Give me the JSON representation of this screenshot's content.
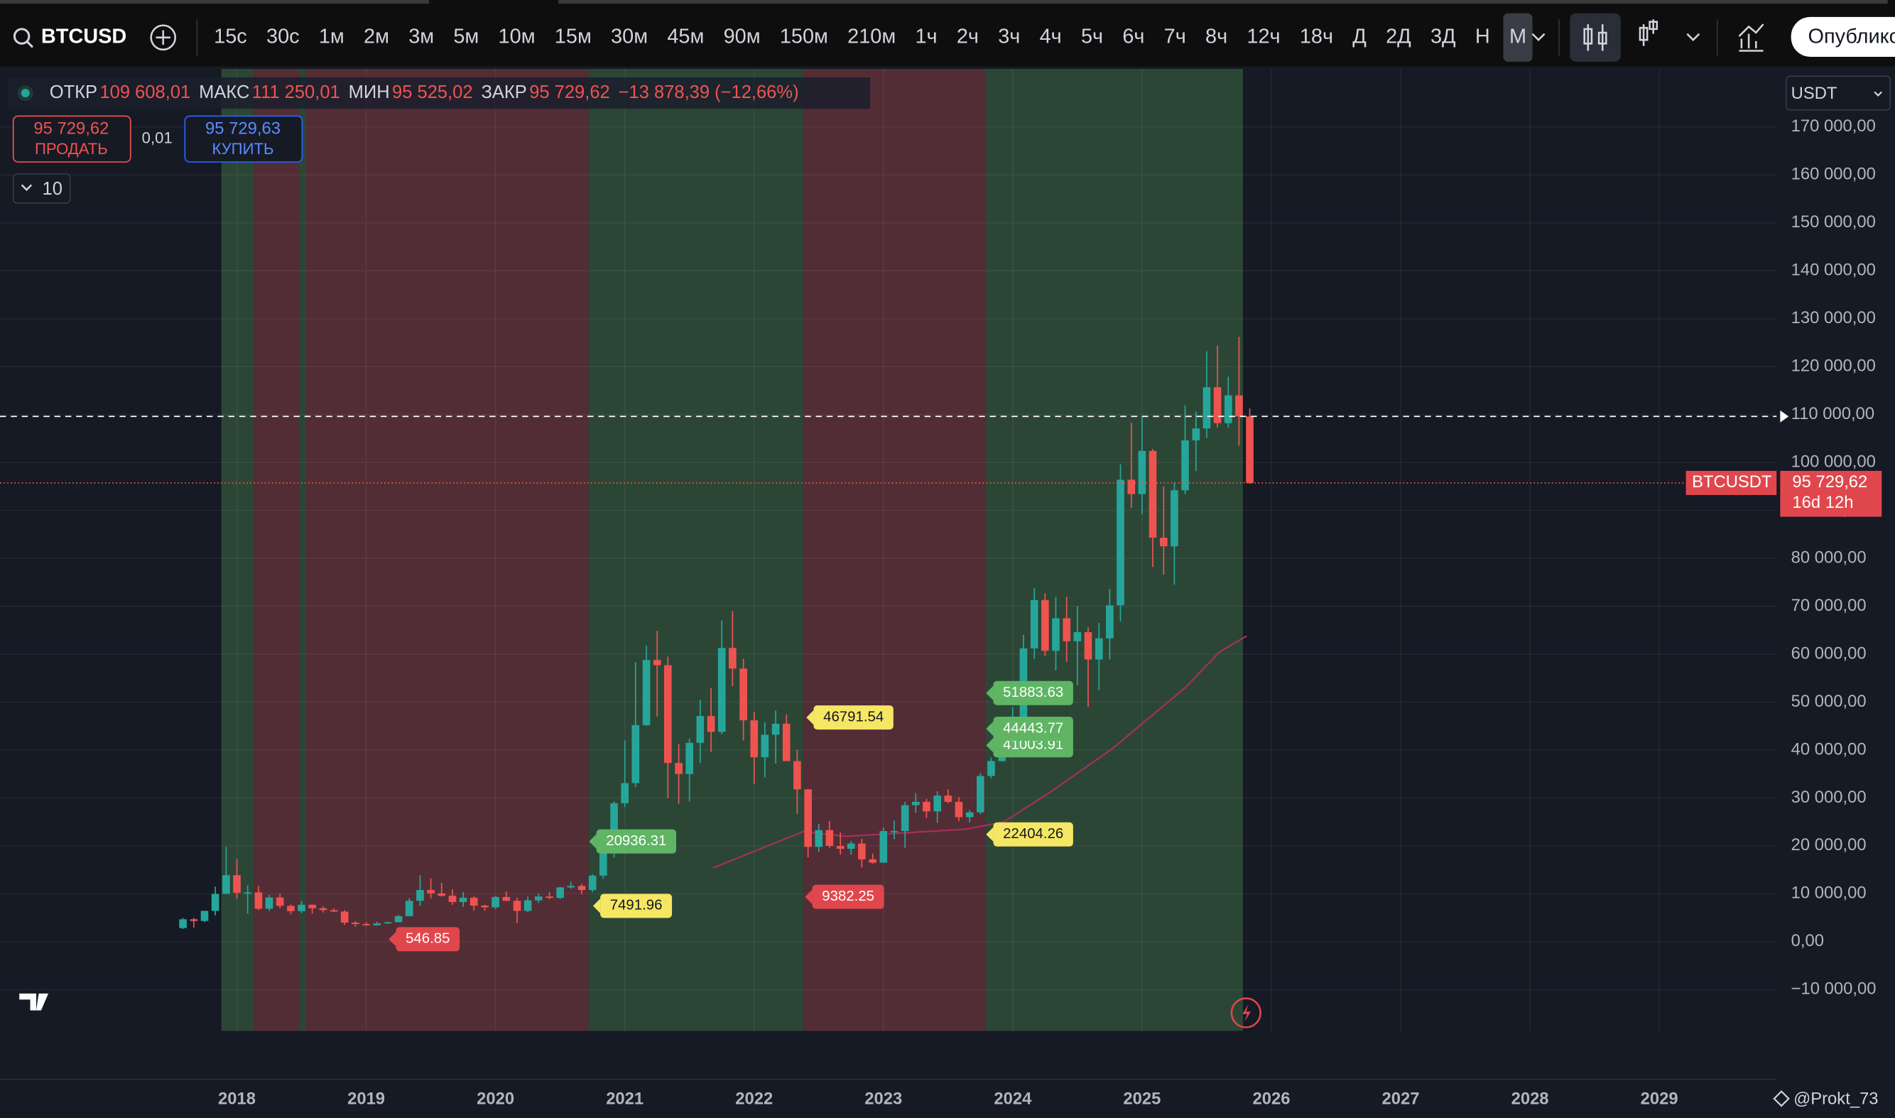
{
  "toolbar": {
    "symbol": "BTCUSD",
    "intervals": [
      "15с",
      "30с",
      "1м",
      "2м",
      "3м",
      "5м",
      "10м",
      "15м",
      "30м",
      "45м",
      "90м",
      "150м",
      "210м",
      "1ч",
      "2ч",
      "3ч",
      "4ч",
      "5ч",
      "6ч",
      "7ч",
      "8ч",
      "12ч",
      "18ч",
      "Д",
      "2Д",
      "3Д",
      "Н",
      "М"
    ],
    "publish": "Опублико"
  },
  "legend": {
    "items": [
      {
        "label": "ОТКР",
        "value": "109 608,01"
      },
      {
        "label": "МАКС",
        "value": "111 250,01"
      },
      {
        "label": "МИН",
        "value": "95 525,02"
      },
      {
        "label": "ЗАКР",
        "value": "95 729,62"
      }
    ],
    "change": "−13 878,39 (−12,66%)"
  },
  "trade": {
    "sell_price": "95 729,62",
    "sell_label": "ПРОДАТЬ",
    "quantity": "0,01",
    "buy_price": "95 729,63",
    "buy_label": "КУПИТЬ"
  },
  "indicator_count": "10",
  "currency": "USDT",
  "watermark": "@Prokt_73",
  "chart_data": {
    "type": "candlestick",
    "up_color": "#26a69a",
    "down_color": "#ef5350",
    "xlim": [
      2016.168,
      2029.907
    ],
    "xticks": [
      2018,
      2019,
      2020,
      2021,
      2022,
      2023,
      2024,
      2025,
      2026,
      2027,
      2028,
      2029
    ],
    "ylim": [
      -18600,
      182100
    ],
    "yticks": [
      {
        "value": -10000,
        "label": "−10 000,00"
      },
      {
        "value": 0,
        "label": "0,00"
      },
      {
        "value": 10000,
        "label": "10 000,00"
      },
      {
        "value": 20000,
        "label": "20 000,00"
      },
      {
        "value": 30000,
        "label": "30 000,00"
      },
      {
        "value": 40000,
        "label": "40 000,00"
      },
      {
        "value": 50000,
        "label": "50 000,00"
      },
      {
        "value": 60000,
        "label": "60 000,00"
      },
      {
        "value": 70000,
        "label": "70 000,00"
      },
      {
        "value": 80000,
        "label": "80 000,00"
      },
      {
        "value": 90000,
        "label": "90 000,00"
      },
      {
        "value": 100000,
        "label": "100 000,00"
      },
      {
        "value": 110000,
        "label": "110 000,00"
      },
      {
        "value": 120000,
        "label": "120 000,00"
      },
      {
        "value": 130000,
        "label": "130 000,00"
      },
      {
        "value": 140000,
        "label": "140 000,00"
      },
      {
        "value": 150000,
        "label": "150 000,00"
      },
      {
        "value": 160000,
        "label": "160 000,00"
      },
      {
        "value": 170000,
        "label": "170 000,00"
      }
    ],
    "grid": true,
    "x": [
      2017.583,
      2017.667,
      2017.75,
      2017.833,
      2017.917,
      2018,
      2018.083,
      2018.167,
      2018.25,
      2018.333,
      2018.417,
      2018.5,
      2018.583,
      2018.667,
      2018.75,
      2018.833,
      2018.917,
      2019,
      2019.083,
      2019.167,
      2019.25,
      2019.333,
      2019.417,
      2019.5,
      2019.583,
      2019.667,
      2019.75,
      2019.833,
      2019.917,
      2020,
      2020.083,
      2020.167,
      2020.25,
      2020.333,
      2020.417,
      2020.5,
      2020.583,
      2020.667,
      2020.75,
      2020.833,
      2020.917,
      2021,
      2021.083,
      2021.167,
      2021.25,
      2021.333,
      2021.417,
      2021.5,
      2021.583,
      2021.667,
      2021.75,
      2021.833,
      2021.917,
      2022,
      2022.083,
      2022.167,
      2022.25,
      2022.333,
      2022.417,
      2022.5,
      2022.583,
      2022.667,
      2022.75,
      2022.833,
      2022.917,
      2023,
      2023.083,
      2023.167,
      2023.25,
      2023.333,
      2023.417,
      2023.5,
      2023.583,
      2023.667,
      2023.75,
      2023.833,
      2023.917,
      2024,
      2024.083,
      2024.167,
      2024.25,
      2024.333,
      2024.417,
      2024.5,
      2024.583,
      2024.667,
      2024.75,
      2024.833,
      2024.917,
      2025,
      2025.083,
      2025.167,
      2025.25,
      2025.333,
      2025.417,
      2025.5,
      2025.583,
      2025.667,
      2025.75,
      2025.833
    ],
    "ohlc": [
      [
        2870,
        4980,
        2670,
        4700
      ],
      [
        4700,
        4980,
        2970,
        4340
      ],
      [
        4340,
        6450,
        4110,
        6450
      ],
      [
        6450,
        11500,
        5500,
        10000
      ],
      [
        10000,
        19800,
        10800,
        13900
      ],
      [
        13900,
        17250,
        9000,
        10200
      ],
      [
        10200,
        11800,
        5900,
        10300
      ],
      [
        10300,
        11700,
        6600,
        6900
      ],
      [
        6900,
        9800,
        6450,
        9250
      ],
      [
        9250,
        10000,
        7000,
        7500
      ],
      [
        7500,
        7780,
        5750,
        6400
      ],
      [
        6400,
        8500,
        6000,
        7730
      ],
      [
        7730,
        7760,
        5880,
        7000
      ],
      [
        7000,
        7400,
        6100,
        6600
      ],
      [
        6600,
        7000,
        6200,
        6300
      ],
      [
        6300,
        6600,
        3500,
        4000
      ],
      [
        4000,
        4300,
        3150,
        3700
      ],
      [
        3700,
        4100,
        3350,
        3450
      ],
      [
        3450,
        4200,
        3400,
        3850
      ],
      [
        3850,
        4150,
        3700,
        4100
      ],
      [
        4100,
        5600,
        4050,
        5350
      ],
      [
        5350,
        9100,
        5350,
        8550
      ],
      [
        8550,
        13900,
        7500,
        10800
      ],
      [
        10800,
        13200,
        9050,
        10100
      ],
      [
        10100,
        12300,
        9400,
        9600
      ],
      [
        9600,
        10950,
        7700,
        8300
      ],
      [
        8300,
        10400,
        7300,
        9200
      ],
      [
        9200,
        9500,
        6550,
        7550
      ],
      [
        7550,
        7750,
        6450,
        7200
      ],
      [
        7200,
        9600,
        6850,
        9350
      ],
      [
        9350,
        10500,
        8450,
        8550
      ],
      [
        8550,
        9200,
        3850,
        6450
      ],
      [
        6450,
        9450,
        6150,
        8650
      ],
      [
        8650,
        10100,
        8100,
        9450
      ],
      [
        9450,
        10400,
        8900,
        9150
      ],
      [
        9150,
        11450,
        8950,
        11350
      ],
      [
        11350,
        12500,
        11100,
        11650
      ],
      [
        11650,
        12100,
        9900,
        10800
      ],
      [
        10800,
        14100,
        10400,
        13800
      ],
      [
        13800,
        19900,
        13200,
        19700
      ],
      [
        19700,
        29300,
        17600,
        28900
      ],
      [
        28900,
        42000,
        28100,
        33100
      ],
      [
        33100,
        58300,
        32300,
        45200
      ],
      [
        45200,
        61800,
        45000,
        58800
      ],
      [
        58800,
        64900,
        47000,
        57700
      ],
      [
        57700,
        59500,
        30000,
        37300
      ],
      [
        37300,
        41300,
        28800,
        35000
      ],
      [
        35000,
        42400,
        29300,
        41500
      ],
      [
        41500,
        50500,
        37300,
        47100
      ],
      [
        47100,
        52900,
        39600,
        43800
      ],
      [
        43800,
        67000,
        43300,
        61300
      ],
      [
        61300,
        69000,
        53300,
        57000
      ],
      [
        57000,
        59000,
        42000,
        46200
      ],
      [
        46200,
        48000,
        32900,
        38500
      ],
      [
        38500,
        45800,
        34300,
        43200
      ],
      [
        43200,
        48200,
        37200,
        45500
      ],
      [
        45500,
        47400,
        37700,
        37700
      ],
      [
        37700,
        40000,
        26700,
        31800
      ],
      [
        31800,
        31900,
        17600,
        19800
      ],
      [
        19800,
        24600,
        18800,
        23300
      ],
      [
        23300,
        25200,
        19600,
        20000
      ],
      [
        20000,
        22800,
        18200,
        19400
      ],
      [
        19400,
        21000,
        18200,
        20500
      ],
      [
        20500,
        21500,
        15500,
        17200
      ],
      [
        17200,
        18400,
        16300,
        16500
      ],
      [
        16500,
        23900,
        16500,
        23100
      ],
      [
        23100,
        25300,
        21400,
        23100
      ],
      [
        23100,
        29200,
        19600,
        28500
      ],
      [
        28500,
        31000,
        26900,
        29200
      ],
      [
        29200,
        29800,
        25800,
        27200
      ],
      [
        27200,
        31400,
        24800,
        30500
      ],
      [
        30500,
        31800,
        28900,
        29200
      ],
      [
        29200,
        30200,
        25200,
        26000
      ],
      [
        26000,
        27500,
        24900,
        27000
      ],
      [
        27000,
        35200,
        26600,
        34600
      ],
      [
        34600,
        38400,
        34100,
        37700
      ],
      [
        37700,
        44700,
        37600,
        42300
      ],
      [
        42300,
        48900,
        38500,
        42600
      ],
      [
        42600,
        64000,
        41900,
        61200
      ],
      [
        61200,
        73800,
        59000,
        71300
      ],
      [
        71300,
        72700,
        59600,
        60700
      ],
      [
        60700,
        71900,
        56600,
        67500
      ],
      [
        67500,
        72000,
        58400,
        62700
      ],
      [
        62700,
        70000,
        53500,
        64600
      ],
      [
        64600,
        65600,
        49000,
        58900
      ],
      [
        58900,
        66500,
        52500,
        63300
      ],
      [
        63300,
        73600,
        58900,
        70200
      ],
      [
        70200,
        99600,
        66800,
        96400
      ],
      [
        96400,
        108300,
        90500,
        93400
      ],
      [
        93400,
        109600,
        89200,
        102400
      ],
      [
        102400,
        102800,
        78200,
        84300
      ],
      [
        84300,
        95000,
        76600,
        82500
      ],
      [
        82500,
        95800,
        74500,
        94200
      ],
      [
        94200,
        111900,
        93400,
        104600
      ],
      [
        104600,
        110600,
        98200,
        107100
      ],
      [
        107100,
        123200,
        105100,
        115700
      ],
      [
        115700,
        124400,
        107300,
        108200
      ],
      [
        108200,
        117900,
        107300,
        114000
      ],
      [
        114000,
        126200,
        103500,
        109608.01
      ],
      [
        109608.01,
        111250.01,
        95525.02,
        95729.62
      ]
    ],
    "zones": [
      {
        "from": 2017.88,
        "to": 2018.13,
        "color": "#2c4636"
      },
      {
        "from": 2018.13,
        "to": 2018.48,
        "color": "#532d35"
      },
      {
        "from": 2018.48,
        "to": 2018.53,
        "color": "#2c4636"
      },
      {
        "from": 2018.53,
        "to": 2020.72,
        "color": "#532d35"
      },
      {
        "from": 2020.72,
        "to": 2022.38,
        "color": "#2c4636"
      },
      {
        "from": 2022.38,
        "to": 2023.79,
        "color": "#532d35"
      },
      {
        "from": 2023.79,
        "to": 2025.78,
        "color": "#2c4636"
      }
    ],
    "ma": {
      "color": "#a3305c",
      "x": [
        2021.68,
        2022.38,
        2022.71,
        2023.64,
        2023.93,
        2024.3,
        2024.77,
        2025.05,
        2025.33,
        2025.6,
        2025.81
      ],
      "values": [
        15400,
        23000,
        22000,
        23500,
        25000,
        31400,
        40300,
        46600,
        52900,
        60500,
        63800
      ]
    },
    "annotations": [
      {
        "value": 546.85,
        "x": 2019.23,
        "color": "#e0474c"
      },
      {
        "value": 7491.96,
        "x": 2020.81,
        "color": "#f5e663"
      },
      {
        "value": 20936.31,
        "x": 2020.78,
        "color": "#5fb563"
      },
      {
        "value": 9382.25,
        "x": 2022.45,
        "color": "#e0474c"
      },
      {
        "value": 46791.54,
        "x": 2022.46,
        "color": "#f5e663"
      },
      {
        "value": 22404.26,
        "x": 2023.85,
        "color": "#f5e663"
      },
      {
        "value": 41003.91,
        "x": 2023.85,
        "color": "#5fb563"
      },
      {
        "value": 44443.77,
        "x": 2023.85,
        "color": "#5fb563"
      },
      {
        "value": 51883.63,
        "x": 2023.85,
        "color": "#5fb563"
      }
    ],
    "symbol_tag": "BTCUSDT",
    "price_tag": "95 729,62",
    "countdown": "16d 12h"
  }
}
